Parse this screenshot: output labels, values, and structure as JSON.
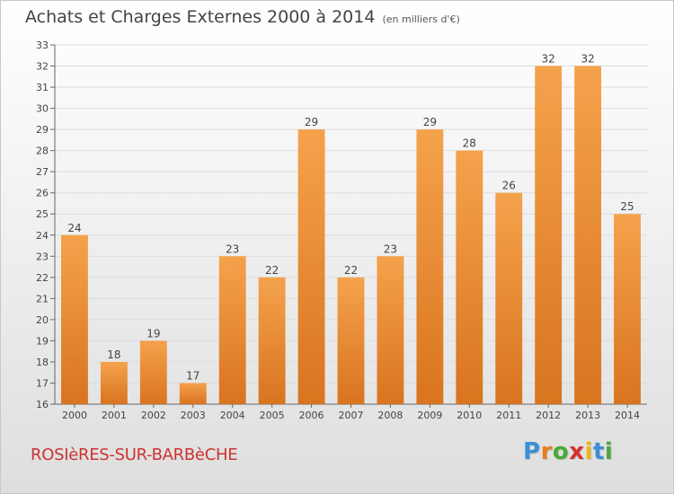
{
  "header": {
    "title": "Achats et Charges Externes 2000 à 2014",
    "subtitle": "(en milliers d'€)"
  },
  "footer": {
    "place_name": "ROSIèRES-SUR-BARBèCHE",
    "brand": "Proxiti",
    "brand_letters": [
      "P",
      "r",
      "o",
      "x",
      "i",
      "t",
      "i"
    ],
    "brand_colors": [
      "#3a8fd6",
      "#e87e1a",
      "#4aa83a",
      "#d6322f",
      "#e8b81a",
      "#3a8fd6",
      "#4aa83a"
    ]
  },
  "chart_data": {
    "type": "bar",
    "categories": [
      "2000",
      "2001",
      "2002",
      "2003",
      "2004",
      "2005",
      "2006",
      "2007",
      "2008",
      "2009",
      "2010",
      "2011",
      "2012",
      "2013",
      "2014"
    ],
    "values": [
      24,
      18,
      19,
      17,
      23,
      22,
      29,
      22,
      23,
      29,
      28,
      26,
      32,
      32,
      25
    ],
    "title": "Achats et Charges Externes 2000 à 2014",
    "subtitle": "(en milliers d'€)",
    "ylim": [
      16,
      33
    ],
    "yticks": [
      16,
      17,
      18,
      19,
      20,
      21,
      22,
      23,
      24,
      25,
      26,
      27,
      28,
      29,
      30,
      31,
      32,
      33
    ],
    "grid": true,
    "bar_color_top": "#f5a24c",
    "bar_color_bottom": "#d9741f"
  }
}
